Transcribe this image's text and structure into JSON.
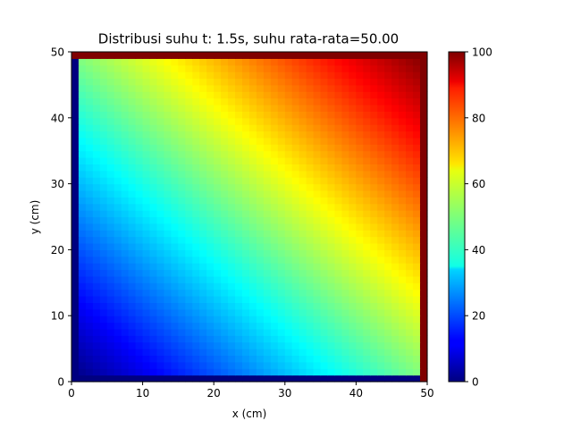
{
  "chart_data": {
    "type": "heatmap",
    "title": "Distribusi suhu t: 1.5s, suhu rata-rata=50.00",
    "xlabel": "x (cm)",
    "ylabel": "y (cm)",
    "xlim": [
      0,
      50
    ],
    "ylim": [
      0,
      50
    ],
    "x_ticks": [
      "0",
      "10",
      "20",
      "30",
      "40",
      "50"
    ],
    "y_ticks": [
      "0",
      "10",
      "20",
      "30",
      "40",
      "50"
    ],
    "grid": false,
    "colormap": "jet",
    "grid_size": [
      50,
      50
    ],
    "field": {
      "description_of_values": "temperature at (x, y)",
      "bottom_boundary_value": 0,
      "left_boundary_value": 0,
      "top_boundary_value": 100,
      "right_boundary_value": 100,
      "interior_min": 2,
      "interior_max": 98,
      "mean": 50.0
    },
    "colorbar": {
      "range": [
        0,
        100
      ],
      "ticks": [
        "0",
        "20",
        "40",
        "60",
        "80",
        "100"
      ]
    }
  }
}
